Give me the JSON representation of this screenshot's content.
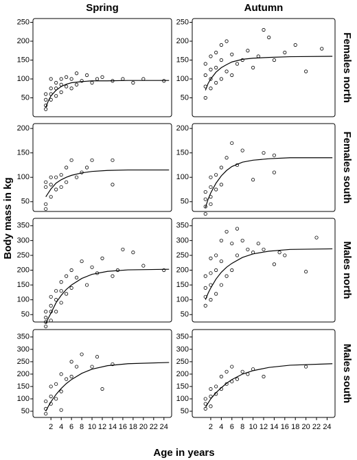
{
  "chart_data": [
    {
      "type": "scatter",
      "title": "Spring",
      "ylabel": "Body mass in kg",
      "xlim": [
        -1.5,
        25.5
      ],
      "ylim": [
        0,
        260
      ],
      "yticks": [
        50,
        100,
        150,
        200,
        250
      ],
      "points": {
        "x": [
          1,
          1,
          1,
          1,
          2,
          2,
          2,
          2,
          3,
          3,
          3,
          4,
          4,
          4,
          5,
          5,
          6,
          6,
          7,
          7,
          8,
          9,
          10,
          11,
          12,
          14,
          16,
          18,
          20,
          24
        ],
        "values": [
          20,
          30,
          45,
          60,
          45,
          60,
          75,
          100,
          55,
          75,
          90,
          65,
          85,
          100,
          80,
          105,
          75,
          100,
          85,
          115,
          95,
          110,
          90,
          100,
          105,
          95,
          100,
          90,
          100,
          95
        ]
      },
      "curve": {
        "x": [
          1,
          1.5,
          2,
          3,
          4,
          5,
          6,
          8,
          10,
          13,
          17,
          25
        ],
        "values": [
          25,
          42,
          55,
          70,
          80,
          86,
          90,
          93,
          95,
          95,
          96,
          96
        ]
      }
    },
    {
      "type": "scatter",
      "title": "Autumn",
      "row_label": "Females north",
      "xlim": [
        -1.5,
        25.5
      ],
      "ylim": [
        0,
        260
      ],
      "yticks": [
        50,
        100,
        150,
        200,
        250
      ],
      "points": {
        "x": [
          1,
          1,
          1,
          1,
          2,
          2,
          2,
          2,
          3,
          3,
          3,
          4,
          4,
          4,
          5,
          5,
          6,
          6,
          7,
          8,
          9,
          10,
          11,
          12,
          13,
          14,
          16,
          18,
          20,
          23
        ],
        "values": [
          50,
          80,
          110,
          140,
          75,
          100,
          125,
          160,
          90,
          130,
          170,
          100,
          150,
          190,
          120,
          200,
          110,
          165,
          140,
          150,
          175,
          130,
          160,
          230,
          210,
          150,
          170,
          190,
          120,
          180
        ]
      },
      "curve": {
        "x": [
          1,
          1.5,
          2,
          3,
          4,
          5,
          6,
          8,
          10,
          13,
          17,
          25
        ],
        "values": [
          70,
          88,
          100,
          118,
          130,
          138,
          145,
          152,
          155,
          157,
          159,
          160
        ]
      }
    },
    {
      "type": "scatter",
      "xlim": [
        -1.5,
        25.5
      ],
      "ylim": [
        30,
        210
      ],
      "yticks": [
        50,
        100,
        150,
        200
      ],
      "points": {
        "x": [
          1,
          1,
          1,
          1,
          2,
          2,
          2,
          3,
          3,
          4,
          4,
          5,
          5,
          6,
          7,
          8,
          9,
          10,
          14,
          14
        ],
        "values": [
          35,
          45,
          80,
          90,
          60,
          85,
          100,
          75,
          100,
          80,
          105,
          90,
          120,
          135,
          100,
          110,
          120,
          135,
          135,
          85
        ]
      },
      "curve": {
        "x": [
          1,
          1.5,
          2,
          3,
          4,
          5,
          6,
          8,
          10,
          13,
          17,
          25
        ],
        "values": [
          60,
          68,
          76,
          88,
          95,
          100,
          104,
          109,
          112,
          114,
          115,
          115
        ]
      }
    },
    {
      "type": "scatter",
      "row_label": "Females south",
      "xlim": [
        -1.5,
        25.5
      ],
      "ylim": [
        30,
        210
      ],
      "yticks": [
        50,
        100,
        150,
        200
      ],
      "points": {
        "x": [
          1,
          1,
          1,
          1,
          2,
          2,
          2,
          2,
          3,
          3,
          4,
          4,
          5,
          6,
          7,
          8,
          10,
          12,
          14,
          14
        ],
        "values": [
          25,
          40,
          55,
          70,
          45,
          60,
          80,
          100,
          75,
          105,
          85,
          120,
          140,
          170,
          125,
          155,
          95,
          150,
          145,
          110
        ]
      },
      "curve": {
        "x": [
          1,
          1.5,
          2,
          3,
          4,
          5,
          6,
          8,
          10,
          13,
          17,
          25
        ],
        "values": [
          38,
          55,
          68,
          88,
          103,
          114,
          122,
          131,
          135,
          138,
          140,
          140
        ]
      }
    },
    {
      "type": "scatter",
      "xlim": [
        -1.5,
        25.5
      ],
      "ylim": [
        25,
        375
      ],
      "yticks": [
        50,
        100,
        150,
        200,
        250,
        300,
        350
      ],
      "points": {
        "x": [
          1,
          1,
          1,
          1,
          2,
          2,
          2,
          2,
          3,
          3,
          3,
          4,
          4,
          4,
          5,
          5,
          6,
          6,
          7,
          8,
          9,
          10,
          11,
          12,
          14,
          15,
          16,
          18,
          20,
          24
        ],
        "values": [
          10,
          25,
          40,
          60,
          30,
          60,
          80,
          110,
          60,
          100,
          130,
          90,
          130,
          160,
          120,
          180,
          140,
          200,
          175,
          230,
          150,
          210,
          190,
          240,
          180,
          200,
          270,
          260,
          215,
          200
        ]
      },
      "curve": {
        "x": [
          1,
          1.5,
          2,
          3,
          4,
          5,
          6,
          8,
          10,
          13,
          17,
          25
        ],
        "values": [
          20,
          38,
          55,
          90,
          115,
          135,
          150,
          172,
          186,
          196,
          201,
          203
        ]
      }
    },
    {
      "type": "scatter",
      "row_label": "Males north",
      "xlim": [
        -1.5,
        25.5
      ],
      "ylim": [
        25,
        375
      ],
      "yticks": [
        50,
        100,
        150,
        200,
        250,
        300,
        350
      ],
      "points": {
        "x": [
          1,
          1,
          1,
          1,
          2,
          2,
          2,
          2,
          3,
          3,
          3,
          4,
          4,
          4,
          5,
          5,
          6,
          6,
          7,
          7,
          8,
          9,
          10,
          11,
          12,
          14,
          15,
          16,
          20,
          22
        ],
        "values": [
          80,
          110,
          140,
          180,
          100,
          150,
          190,
          240,
          120,
          200,
          250,
          150,
          230,
          300,
          180,
          330,
          200,
          290,
          250,
          340,
          300,
          270,
          260,
          290,
          270,
          220,
          260,
          250,
          195,
          310
        ]
      },
      "curve": {
        "x": [
          1,
          1.5,
          2,
          3,
          4,
          5,
          6,
          8,
          10,
          13,
          17,
          25
        ],
        "values": [
          100,
          122,
          140,
          170,
          193,
          210,
          223,
          243,
          255,
          264,
          270,
          272
        ]
      }
    },
    {
      "type": "scatter",
      "xlabel": "Age in years",
      "xlim": [
        -1.5,
        25.5
      ],
      "ylim": [
        25,
        380
      ],
      "yticks": [
        50,
        100,
        150,
        200,
        250,
        300,
        350
      ],
      "xticks": [
        2,
        4,
        6,
        8,
        10,
        12,
        14,
        16,
        18,
        20,
        22,
        24
      ],
      "points": {
        "x": [
          1,
          1,
          1,
          2,
          2,
          2,
          3,
          3,
          4,
          4,
          4,
          5,
          6,
          6,
          7,
          8,
          10,
          11,
          12,
          14
        ],
        "values": [
          40,
          60,
          90,
          80,
          110,
          150,
          100,
          160,
          55,
          130,
          200,
          180,
          190,
          250,
          230,
          280,
          230,
          270,
          140,
          240
        ]
      },
      "curve": {
        "x": [
          1,
          1.5,
          2,
          3,
          4,
          5,
          6,
          8,
          10,
          13,
          17,
          25
        ],
        "values": [
          50,
          70,
          88,
          118,
          142,
          162,
          178,
          203,
          220,
          234,
          242,
          247
        ]
      }
    },
    {
      "type": "scatter",
      "row_label": "Males south",
      "xlim": [
        -1.5,
        25.5
      ],
      "ylim": [
        25,
        380
      ],
      "yticks": [
        50,
        100,
        150,
        200,
        250,
        300,
        350
      ],
      "xticks": [
        2,
        4,
        6,
        8,
        10,
        12,
        14,
        16,
        18,
        20,
        22,
        24
      ],
      "points": {
        "x": [
          1,
          1,
          1,
          2,
          2,
          2,
          3,
          3,
          4,
          4,
          5,
          5,
          6,
          6,
          7,
          8,
          9,
          10,
          12,
          20
        ],
        "values": [
          60,
          80,
          100,
          70,
          110,
          140,
          120,
          150,
          140,
          190,
          160,
          210,
          170,
          230,
          180,
          210,
          200,
          220,
          190,
          230
        ]
      },
      "curve": {
        "x": [
          1,
          1.5,
          2,
          3,
          4,
          5,
          6,
          8,
          10,
          13,
          17,
          25
        ],
        "values": [
          65,
          83,
          100,
          125,
          145,
          163,
          178,
          200,
          214,
          227,
          236,
          242
        ]
      }
    }
  ]
}
